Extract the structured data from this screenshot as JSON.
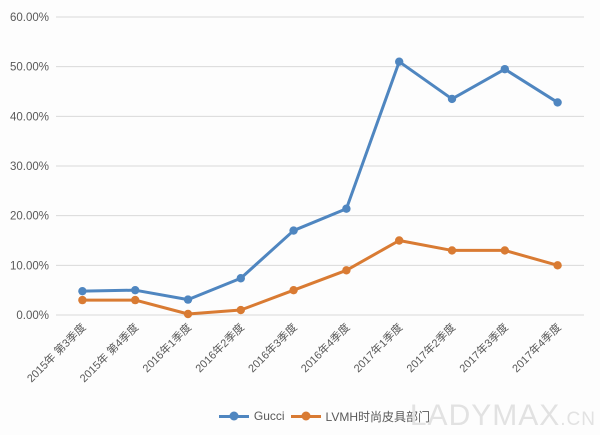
{
  "chart_data": {
    "type": "line",
    "title": "",
    "xlabel": "",
    "ylabel": "",
    "categories": [
      "2015年 第3季度",
      "2015年 第4季度",
      "2016年1季度",
      "2016年2季度",
      "2016年3季度",
      "2016年4季度",
      "2017年1季度",
      "2017年2季度",
      "2017年3季度",
      "2017年4季度"
    ],
    "series": [
      {
        "name": "Gucci",
        "color": "#4f86c0",
        "values": [
          4.8,
          5.0,
          3.1,
          7.4,
          17.0,
          21.4,
          51.0,
          43.5,
          49.5,
          42.8
        ]
      },
      {
        "name": "LVMH时尚皮具部门",
        "color": "#d97b33",
        "values": [
          3.0,
          3.0,
          0.2,
          1.0,
          5.0,
          9.0,
          15.0,
          13.0,
          13.0,
          10.0
        ]
      }
    ],
    "ylim": [
      0,
      60
    ],
    "ytick_step": 10,
    "yticks": [
      "0.00%",
      "10.00%",
      "20.00%",
      "30.00%",
      "40.00%",
      "50.00%",
      "60.00%"
    ],
    "grid": true,
    "gridline_color": "#d9d9d9",
    "axis_text_color": "#595959",
    "legend_position": "bottom"
  },
  "watermark": {
    "text_main": "LADYMAX",
    "text_suffix": ".CN"
  }
}
